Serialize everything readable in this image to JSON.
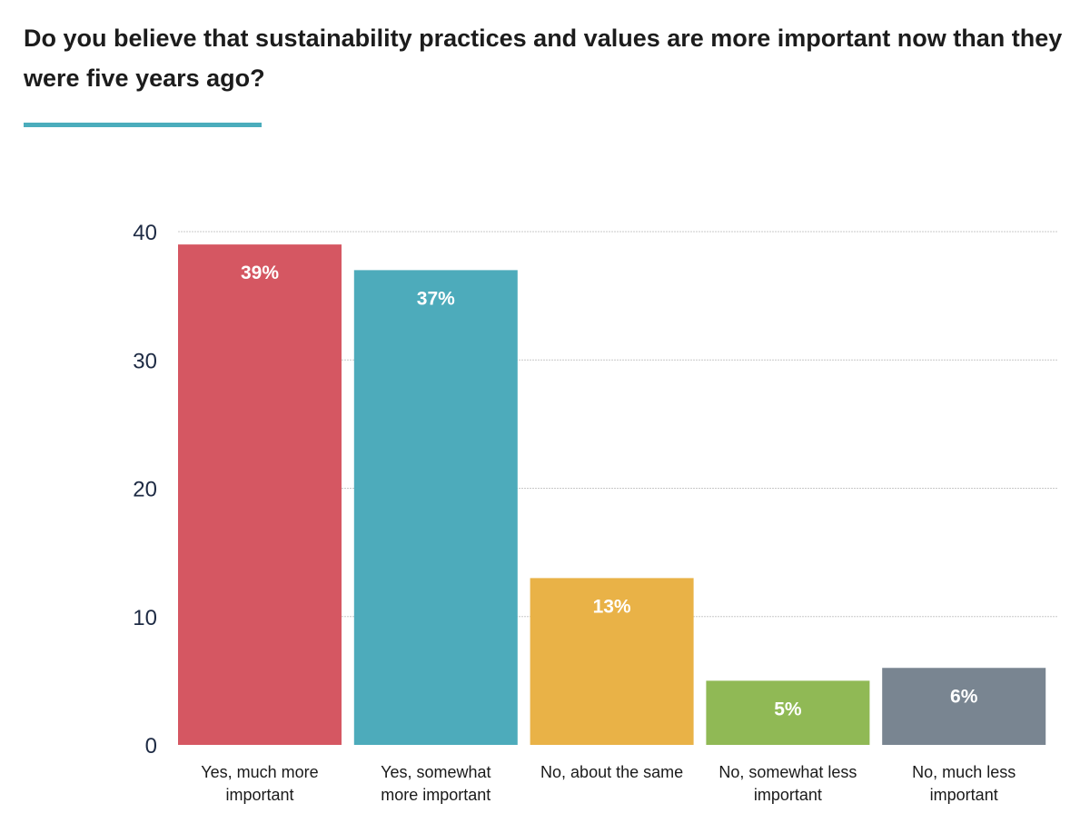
{
  "header": {
    "title": "Do you believe that sustainability practices and values are more important now than they were five years ago?",
    "accent_color": "#4badbc"
  },
  "chart_data": {
    "type": "bar",
    "title": "Do you believe that sustainability practices and values are more important now than they were five years ago?",
    "xlabel": "",
    "ylabel": "",
    "categories": [
      [
        "Yes, much more",
        "important"
      ],
      [
        "Yes, somewhat",
        "more important"
      ],
      [
        "No, about the same"
      ],
      [
        "No, somewhat less",
        "important"
      ],
      [
        "No, much less",
        "important"
      ]
    ],
    "values": [
      39,
      37,
      13,
      5,
      6
    ],
    "data_labels": [
      "39%",
      "37%",
      "13%",
      "5%",
      "6%"
    ],
    "colors": [
      "#d55762",
      "#4dabbb",
      "#e9b247",
      "#90b955",
      "#798591"
    ],
    "yticks": [
      0,
      10,
      20,
      30,
      40
    ],
    "ylim": [
      0,
      40
    ],
    "grid": true,
    "legend": "none"
  }
}
